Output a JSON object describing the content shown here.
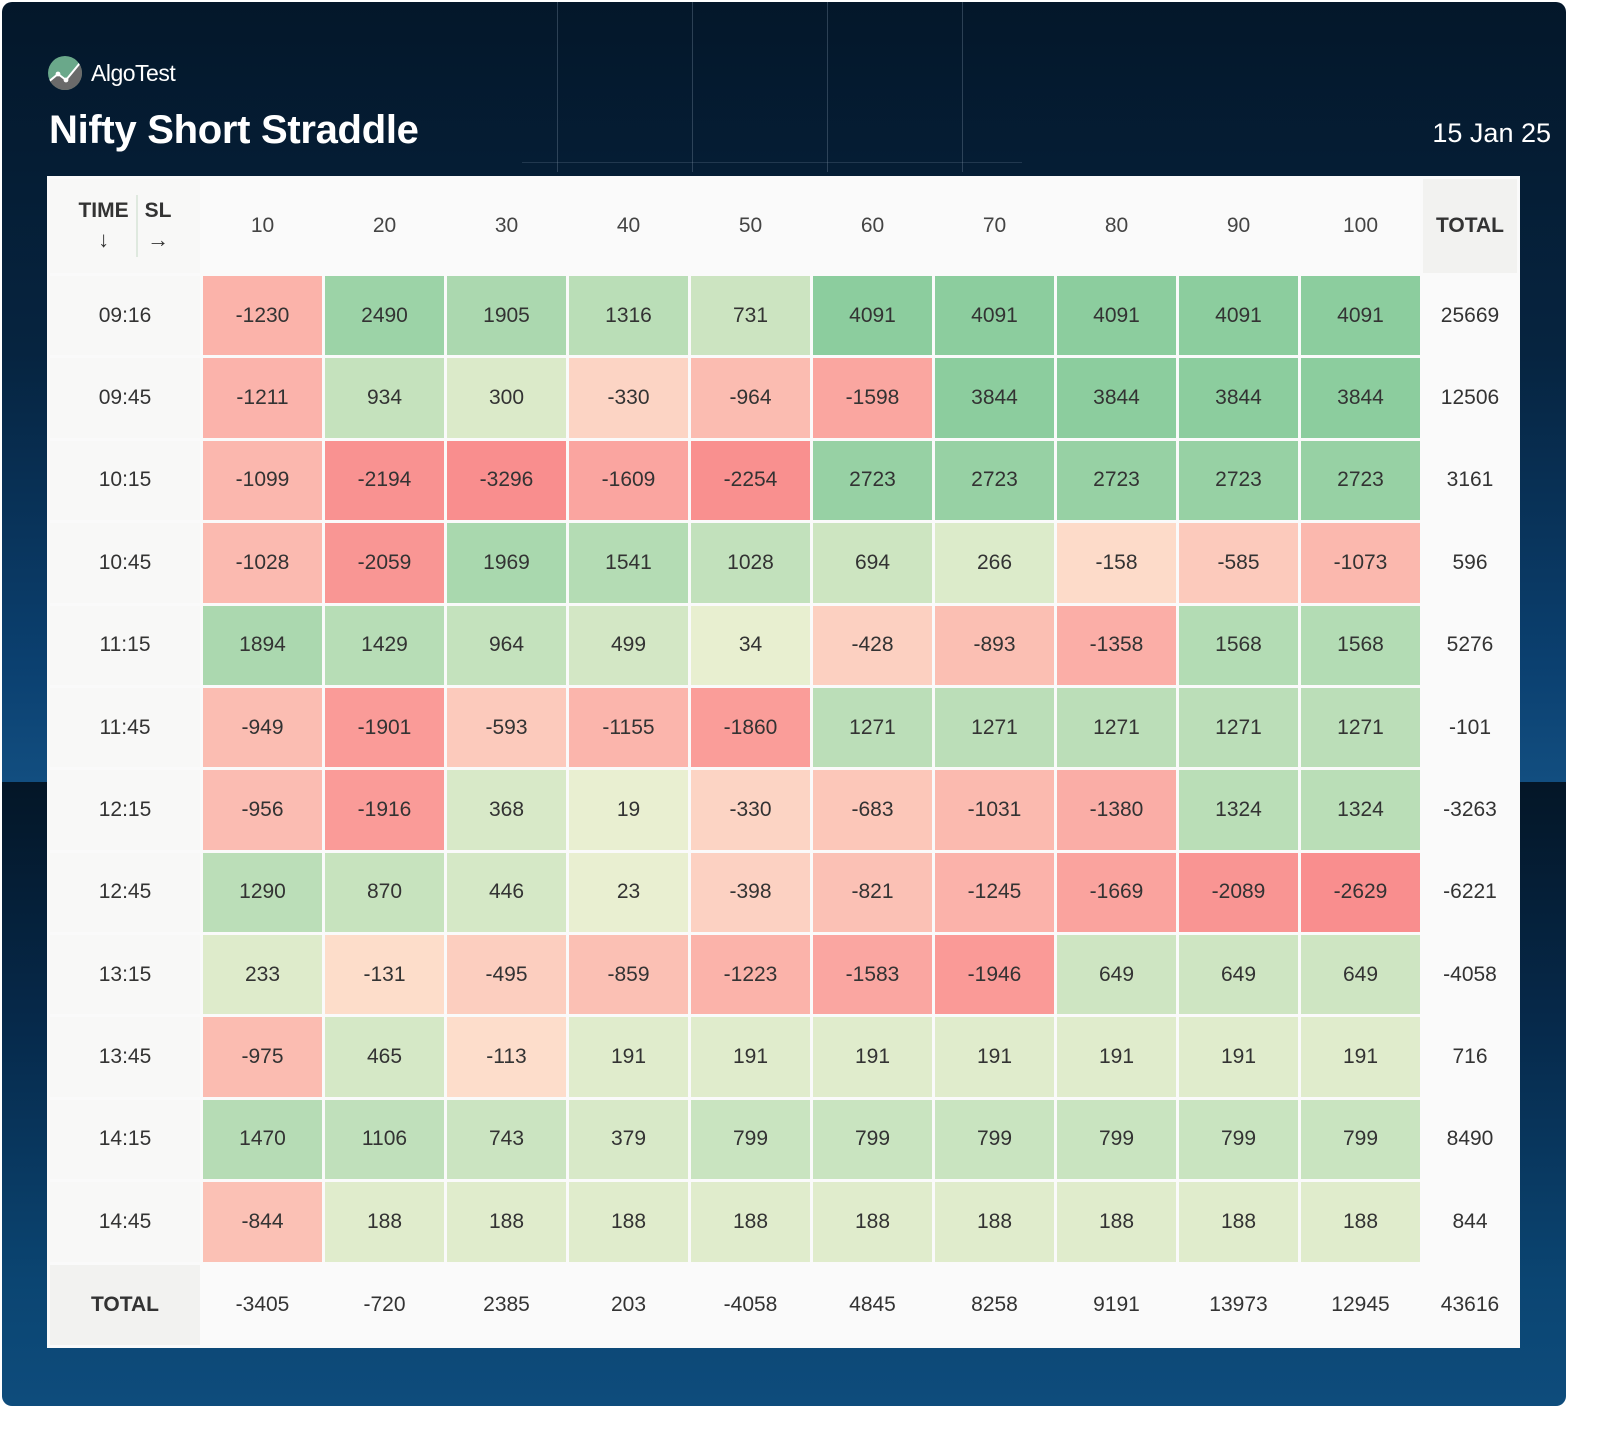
{
  "brand": {
    "name": "AlgoTest",
    "logo_icon": "chart-line-logo-icon"
  },
  "title": "Nifty Short Straddle",
  "date": "15 Jan 25",
  "table": {
    "corner": {
      "row_label": "TIME",
      "row_arrow": "↓",
      "col_label": "SL",
      "col_arrow": "→"
    },
    "columns": [
      "10",
      "20",
      "30",
      "40",
      "50",
      "60",
      "70",
      "80",
      "90",
      "100"
    ],
    "total_label": "TOTAL",
    "rows": [
      {
        "time": "09:16",
        "values": [
          -1230,
          2490,
          1905,
          1316,
          731,
          4091,
          4091,
          4091,
          4091,
          4091
        ],
        "total": "25669"
      },
      {
        "time": "09:45",
        "values": [
          -1211,
          934,
          300,
          -330,
          -964,
          -1598,
          3844,
          3844,
          3844,
          3844
        ],
        "total": "12506"
      },
      {
        "time": "10:15",
        "values": [
          -1099,
          -2194,
          -3296,
          -1609,
          -2254,
          2723,
          2723,
          2723,
          2723,
          2723
        ],
        "total": "3161"
      },
      {
        "time": "10:45",
        "values": [
          -1028,
          -2059,
          1969,
          1541,
          1028,
          694,
          266,
          -158,
          -585,
          -1073
        ],
        "total": "596"
      },
      {
        "time": "11:15",
        "values": [
          1894,
          1429,
          964,
          499,
          34,
          -428,
          -893,
          -1358,
          1568,
          1568
        ],
        "total": "5276"
      },
      {
        "time": "11:45",
        "values": [
          -949,
          -1901,
          -593,
          -1155,
          -1860,
          1271,
          1271,
          1271,
          1271,
          1271
        ],
        "total": "-101"
      },
      {
        "time": "12:15",
        "values": [
          -956,
          -1916,
          368,
          19,
          -330,
          -683,
          -1031,
          -1380,
          1324,
          1324
        ],
        "total": "-3263"
      },
      {
        "time": "12:45",
        "values": [
          1290,
          870,
          446,
          23,
          -398,
          -821,
          -1245,
          -1669,
          -2089,
          -2629
        ],
        "total": "-6221"
      },
      {
        "time": "13:15",
        "values": [
          233,
          -131,
          -495,
          -859,
          -1223,
          -1583,
          -1946,
          649,
          649,
          649
        ],
        "total": "-4058"
      },
      {
        "time": "13:45",
        "values": [
          -975,
          465,
          -113,
          191,
          191,
          191,
          191,
          191,
          191,
          191
        ],
        "total": "716"
      },
      {
        "time": "14:15",
        "values": [
          1470,
          1106,
          743,
          379,
          799,
          799,
          799,
          799,
          799,
          799
        ],
        "total": "8490"
      },
      {
        "time": "14:45",
        "values": [
          -844,
          188,
          188,
          188,
          188,
          188,
          188,
          188,
          188,
          188
        ],
        "total": "844"
      }
    ],
    "column_totals": [
      "-3405",
      "-720",
      "2385",
      "203",
      "-4058",
      "4845",
      "8258",
      "9191",
      "13973",
      "12945"
    ],
    "grand_total": "43616"
  },
  "colors": {
    "positive_strong": "#8ccd9e",
    "positive_light": "#ebf0d2",
    "negative_light": "#fde3cf",
    "negative_strong": "#f98e8e"
  }
}
